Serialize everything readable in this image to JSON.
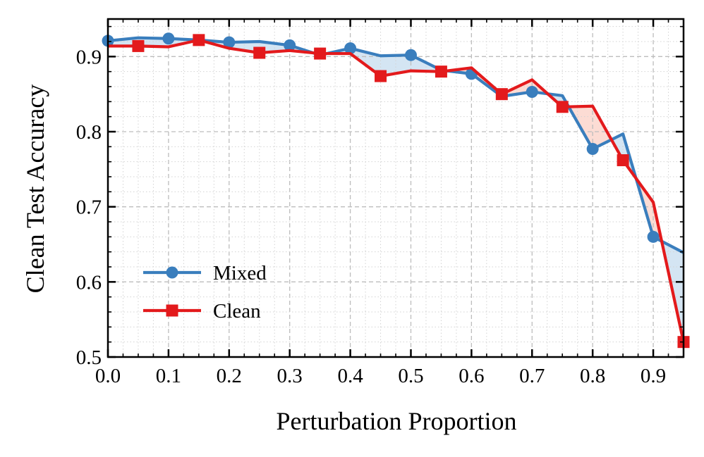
{
  "chart_data": {
    "type": "line",
    "title": "",
    "xlabel": "Perturbation Proportion",
    "ylabel": "Clean Test Accuracy",
    "xlim": [
      0.0,
      0.95
    ],
    "ylim": [
      0.5,
      0.95
    ],
    "xticks": [
      0.0,
      0.1,
      0.2,
      0.3,
      0.4,
      0.5,
      0.6,
      0.7,
      0.8,
      0.9
    ],
    "xtick_labels": [
      "0.0",
      "0.1",
      "0.2",
      "0.3",
      "0.4",
      "0.5",
      "0.6",
      "0.7",
      "0.8",
      "0.9"
    ],
    "yticks": [
      0.5,
      0.6,
      0.7,
      0.8,
      0.9
    ],
    "ytick_labels": [
      "0.5",
      "0.6",
      "0.7",
      "0.8",
      "0.9"
    ],
    "grid": true,
    "legend_position": "lower-left",
    "x": [
      0.0,
      0.05,
      0.1,
      0.15,
      0.2,
      0.25,
      0.3,
      0.35,
      0.4,
      0.45,
      0.5,
      0.55,
      0.6,
      0.65,
      0.7,
      0.75,
      0.8,
      0.85,
      0.9,
      0.95
    ],
    "marker_step": 2,
    "series": [
      {
        "name": "Mixed",
        "color": "#3a7ebd",
        "marker": "circle",
        "marker_offset": 0,
        "values": [
          0.921,
          0.925,
          0.924,
          0.922,
          0.919,
          0.92,
          0.915,
          0.902,
          0.911,
          0.901,
          0.902,
          0.882,
          0.877,
          0.847,
          0.853,
          0.848,
          0.777,
          0.797,
          0.66,
          0.639
        ]
      },
      {
        "name": "Clean",
        "color": "#e31a1c",
        "marker": "square",
        "marker_offset": 1,
        "values": [
          0.914,
          0.914,
          0.913,
          0.922,
          0.911,
          0.905,
          0.908,
          0.904,
          0.904,
          0.874,
          0.881,
          0.88,
          0.885,
          0.85,
          0.869,
          0.833,
          0.834,
          0.762,
          0.706,
          0.52
        ]
      }
    ],
    "fill_colors": {
      "mixed_above": "#c6dcef",
      "clean_above": "#fbd0c6"
    }
  }
}
